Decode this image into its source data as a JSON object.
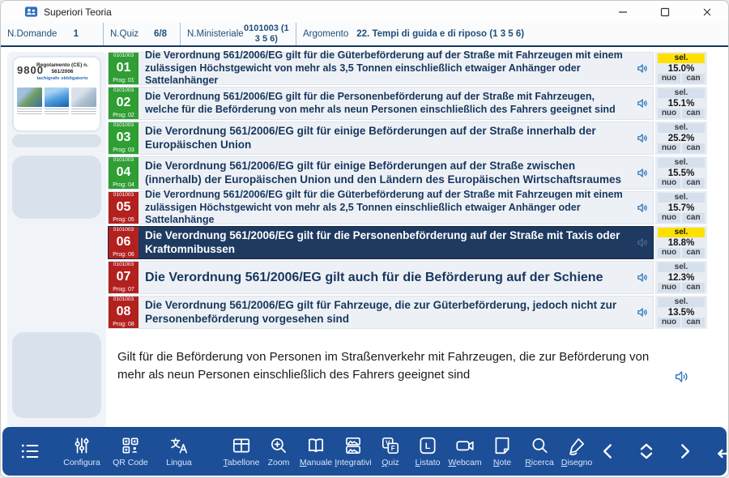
{
  "window": {
    "title": "Superiori Teoria"
  },
  "header": {
    "fields": [
      {
        "label": "N.Domande",
        "value": "1"
      },
      {
        "label": "N.Quiz",
        "value": "6/8"
      },
      {
        "label": "N.Ministeriale",
        "value": "0101003 (1 3 5 6)"
      },
      {
        "label": "Argomento",
        "value": "22. Tempi di guida e di riposo (1 3 5 6)"
      }
    ]
  },
  "sidebar": {
    "slide": {
      "overlay_number": "9800",
      "title": "Regolamento (CE) n. 561/2006",
      "subtitle": "tachigrafo obbligatorio"
    }
  },
  "questions": {
    "code": "0101003",
    "sel_label": "sel.",
    "nuo_label": "nuo",
    "can_label": "can",
    "rows": [
      {
        "num": "01",
        "prog": "Prog: 01",
        "color": "green",
        "selected": false,
        "sel_highlight": true,
        "sel_pct": "15.0%",
        "text": "Die Verordnung 561/2006/EG gilt für die Güterbeförderung auf der Straße mit Fahrzeugen mit einem zulässigen Höchstgewicht von mehr als 3,5 Tonnen einschließlich etwaiger Anhänger oder Sattelanhänger"
      },
      {
        "num": "02",
        "prog": "Prog: 02",
        "color": "green",
        "selected": false,
        "sel_highlight": false,
        "sel_pct": "15.1%",
        "text": "Die Verordnung 561/2006/EG gilt für die Personenbeförderung auf der Straße mit Fahrzeugen, welche für die Beförderung von mehr als neun Personen einschließlich des Fahrers geeignet sind"
      },
      {
        "num": "03",
        "prog": "Prog: 03",
        "color": "green",
        "selected": false,
        "sel_highlight": false,
        "sel_pct": "25.2%",
        "text": "Die Verordnung 561/2006/EG gilt für einige Beförderungen auf der Straße innerhalb der Europäischen Union"
      },
      {
        "num": "04",
        "prog": "Prog: 04",
        "color": "green",
        "selected": false,
        "sel_highlight": false,
        "sel_pct": "15.5%",
        "text": "Die Verordnung 561/2006/EG gilt für einige Beförderungen auf der Straße zwischen (innerhalb) der Europäischen Union und den Ländern des Europäischen Wirtschaftsraumes"
      },
      {
        "num": "05",
        "prog": "Prog: 05",
        "color": "red",
        "selected": false,
        "sel_highlight": false,
        "sel_pct": "15.7%",
        "text": "Die Verordnung 561/2006/EG gilt für die Güterbeförderung auf der Straße mit Fahrzeugen mit einem zulässigen Höchstgewicht von mehr als 2,5 Tonnen einschließlich etwaiger Anhänger oder Sattelanhänge"
      },
      {
        "num": "06",
        "prog": "Prog: 06",
        "color": "red",
        "selected": true,
        "sel_highlight": true,
        "sel_pct": "18.8%",
        "text": "Die Verordnung 561/2006/EG gilt für die Personenbeförderung auf der Straße mit Taxis oder Kraftomnibussen"
      },
      {
        "num": "07",
        "prog": "Prog: 07",
        "color": "red",
        "selected": false,
        "sel_highlight": false,
        "sel_pct": "12.3%",
        "text": "Die Verordnung 561/2006/EG gilt auch für die Beförderung auf der Schiene"
      },
      {
        "num": "08",
        "prog": "Prog: 08",
        "color": "red",
        "selected": false,
        "sel_highlight": false,
        "sel_pct": "13.5%",
        "text": "Die Verordnung 561/2006/EG gilt für Fahrzeuge, die zur Güterbeförderung, jedoch nicht zur Personenbeförderung vorgesehen sind"
      }
    ]
  },
  "answer": {
    "text": "Gilt für die Beförderung von Personen im Straßenverkehr mit Fahrzeugen, die zur Beförderung von mehr als neun Personen einschließlich des Fahrers geeignet sind"
  },
  "toolbar": {
    "items": [
      {
        "icon": "menu-list-icon",
        "label": ""
      },
      {
        "icon": "sliders-icon",
        "label": "Configura"
      },
      {
        "icon": "qr-code-icon",
        "label": "QR Code"
      },
      {
        "icon": "translate-icon",
        "label": "Lingua"
      },
      {
        "icon": "table-icon",
        "label": "Tabellone"
      },
      {
        "icon": "zoom-icon",
        "label": "Zoom"
      },
      {
        "icon": "book-icon",
        "label": "Manuale"
      },
      {
        "icon": "images-icon",
        "label": "Integrativi"
      },
      {
        "icon": "true-false-icon",
        "label": "Quiz"
      },
      {
        "icon": "list-icon",
        "label": "Listato"
      },
      {
        "icon": "webcam-icon",
        "label": "Webcam"
      },
      {
        "icon": "note-icon",
        "label": "Note"
      },
      {
        "icon": "search-icon",
        "label": "Ricerca"
      },
      {
        "icon": "pen-icon",
        "label": "Disegno"
      }
    ]
  },
  "colors": {
    "toolbar_bg": "#1c4f98",
    "selected_row_bg": "#1e3a60",
    "badge_green": "#2f9e33",
    "badge_red": "#b3211f",
    "sel_highlight": "#ffe000",
    "accent_blue": "#2e75b6",
    "header_text": "#1f4e79"
  }
}
